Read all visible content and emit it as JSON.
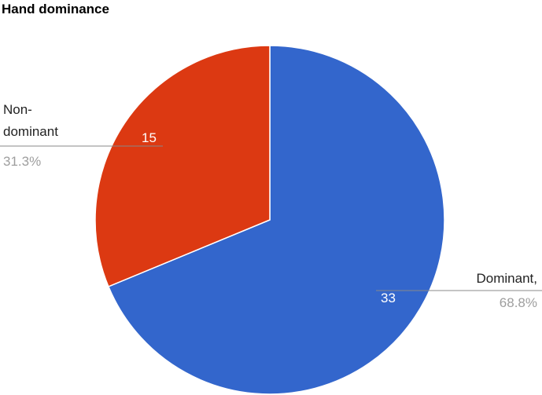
{
  "chart_data": {
    "type": "pie",
    "title": "Hand dominance",
    "categories": [
      "Dominant,",
      "Non-dominant"
    ],
    "values": [
      33,
      15
    ],
    "percent_labels": [
      "68.8%",
      "31.3%"
    ],
    "colors": [
      "#3366cc",
      "#dc3912"
    ]
  }
}
